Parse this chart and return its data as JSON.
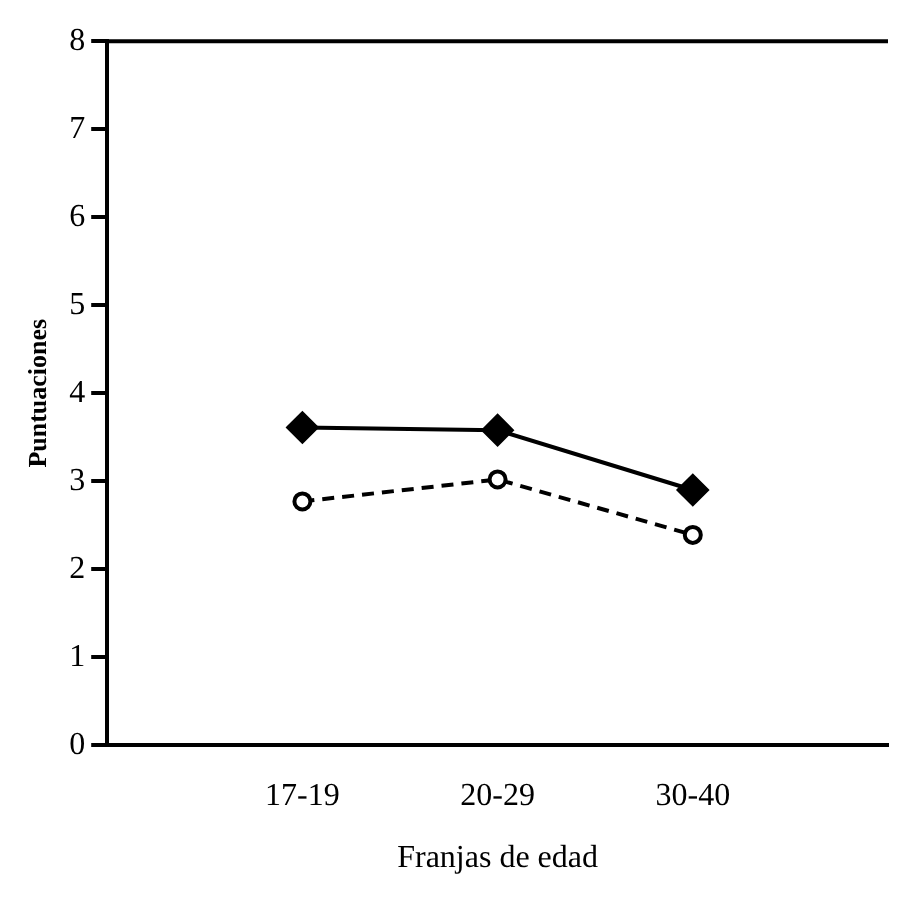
{
  "chart_data": {
    "type": "line",
    "xlabel": "Franjas de edad",
    "ylabel": "Puntuaciones",
    "categories": [
      "17-19",
      "20-29",
      "30-40"
    ],
    "ylim": [
      0,
      8
    ],
    "yticks": [
      0,
      1,
      2,
      3,
      4,
      5,
      6,
      7,
      8
    ],
    "grid": false,
    "legend": false,
    "series": [
      {
        "color": "#000000",
        "marker": "diamond",
        "line_style": "solid",
        "values": [
          3.61,
          3.58,
          2.9
        ]
      },
      {
        "color": "#000000",
        "marker": "circle",
        "line_style": "dashed",
        "values": [
          2.77,
          3.02,
          2.39
        ]
      }
    ]
  }
}
